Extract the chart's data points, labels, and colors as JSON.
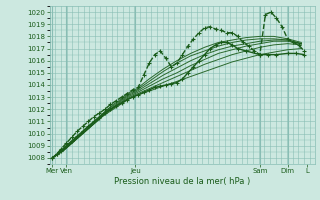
{
  "bg_color": "#cce8e0",
  "grid_color": "#88bdb4",
  "line_color": "#1a5c1a",
  "tick_color": "#1a5c1a",
  "xlabel_color": "#1a5c1a",
  "ylim": [
    1007.5,
    1020.5
  ],
  "yticks": [
    1008,
    1009,
    1010,
    1011,
    1012,
    1013,
    1014,
    1015,
    1016,
    1017,
    1018,
    1019,
    1020
  ],
  "xlabel": "Pression niveau de la mer( hPa )",
  "day_ticks": {
    "labels": [
      "Mer",
      "Ven",
      "Jeu",
      "Sam",
      "Dim",
      "L"
    ],
    "positions": [
      0.0,
      0.5,
      3.0,
      7.5,
      8.5,
      9.2
    ]
  },
  "vlines": [
    0.0,
    0.5,
    3.0,
    7.5,
    8.5
  ],
  "xlim": [
    -0.1,
    9.5
  ],
  "lines": [
    {
      "x": [
        0.0,
        0.15,
        0.3,
        0.5,
        0.7,
        0.9,
        1.1,
        1.3,
        1.5,
        1.7,
        1.9,
        2.1,
        2.3,
        2.5,
        2.7,
        2.9,
        3.1,
        3.3,
        3.5,
        3.7,
        3.9,
        4.1,
        4.3,
        4.5,
        4.7,
        4.9,
        5.1,
        5.3,
        5.5,
        5.7,
        5.9,
        6.1,
        6.3,
        6.5,
        6.7,
        6.9,
        7.1,
        7.3,
        7.5,
        7.7,
        7.9,
        8.1,
        8.3,
        8.5,
        8.7,
        8.9,
        9.1
      ],
      "y": [
        1008.0,
        1008.3,
        1008.7,
        1009.2,
        1009.7,
        1010.2,
        1010.6,
        1011.0,
        1011.4,
        1011.7,
        1012.0,
        1012.4,
        1012.7,
        1013.0,
        1013.3,
        1013.6,
        1013.8,
        1014.8,
        1015.8,
        1016.5,
        1016.8,
        1016.2,
        1015.5,
        1015.8,
        1016.5,
        1017.2,
        1017.8,
        1018.3,
        1018.7,
        1018.8,
        1018.6,
        1018.5,
        1018.3,
        1018.3,
        1018.0,
        1017.5,
        1017.2,
        1016.8,
        1016.5,
        1019.8,
        1020.0,
        1019.5,
        1018.8,
        1017.8,
        1017.5,
        1017.3,
        1016.8
      ],
      "marker": "+",
      "lw": 1.0,
      "ms": 2.5,
      "dashed": true,
      "alpha": 1.0
    },
    {
      "x": [
        0.0,
        0.15,
        0.3,
        0.5,
        0.7,
        0.9,
        1.1,
        1.3,
        1.5,
        1.7,
        1.9,
        2.1,
        2.3,
        2.5,
        2.7,
        2.9,
        3.1,
        3.3,
        3.5,
        3.7,
        3.9,
        4.1,
        4.3,
        4.5,
        4.7,
        4.9,
        5.1,
        5.3,
        5.5,
        5.7,
        5.9,
        6.1,
        6.3,
        6.5,
        6.7,
        7.0,
        7.5,
        7.8,
        8.1,
        8.5,
        8.8,
        9.1
      ],
      "y": [
        1008.0,
        1008.3,
        1008.6,
        1009.0,
        1009.4,
        1009.8,
        1010.2,
        1010.6,
        1011.0,
        1011.3,
        1011.7,
        1012.0,
        1012.3,
        1012.5,
        1012.8,
        1013.0,
        1013.2,
        1013.4,
        1013.6,
        1013.8,
        1013.9,
        1014.0,
        1014.1,
        1014.2,
        1014.5,
        1015.0,
        1015.5,
        1016.0,
        1016.5,
        1017.0,
        1017.3,
        1017.5,
        1017.5,
        1017.3,
        1017.0,
        1016.8,
        1016.5,
        1016.5,
        1016.5,
        1016.6,
        1016.6,
        1016.5
      ],
      "marker": "+",
      "lw": 1.0,
      "ms": 2.5,
      "dashed": false,
      "alpha": 1.0
    },
    {
      "x": [
        0.0,
        0.2,
        0.4,
        0.6,
        0.8,
        1.0,
        1.2,
        1.4,
        1.6,
        1.8,
        2.0,
        2.2,
        2.4,
        2.6,
        2.8,
        3.0,
        3.5,
        4.0,
        4.5,
        5.0,
        5.5,
        6.0,
        6.5,
        7.0,
        7.5,
        8.0,
        8.5,
        9.0
      ],
      "y": [
        1008.0,
        1008.3,
        1008.6,
        1009.0,
        1009.4,
        1009.8,
        1010.2,
        1010.6,
        1011.0,
        1011.4,
        1011.7,
        1012.0,
        1012.3,
        1012.6,
        1012.9,
        1013.1,
        1013.5,
        1013.9,
        1014.3,
        1014.7,
        1015.1,
        1015.5,
        1015.9,
        1016.2,
        1016.5,
        1016.7,
        1016.9,
        1017.0
      ],
      "marker": null,
      "lw": 0.7,
      "ms": 0,
      "dashed": false,
      "alpha": 0.9
    },
    {
      "x": [
        0.0,
        0.2,
        0.4,
        0.6,
        0.8,
        1.0,
        1.2,
        1.4,
        1.6,
        1.8,
        2.0,
        2.2,
        2.4,
        2.6,
        2.8,
        3.0,
        3.5,
        4.0,
        4.5,
        5.0,
        5.5,
        6.0,
        6.5,
        7.0,
        7.5,
        8.0,
        8.5,
        9.0
      ],
      "y": [
        1008.0,
        1008.3,
        1008.6,
        1009.0,
        1009.4,
        1009.8,
        1010.2,
        1010.6,
        1011.0,
        1011.4,
        1011.8,
        1012.1,
        1012.4,
        1012.7,
        1013.0,
        1013.2,
        1013.7,
        1014.2,
        1014.7,
        1015.2,
        1015.7,
        1016.1,
        1016.5,
        1016.8,
        1017.1,
        1017.3,
        1017.4,
        1017.3
      ],
      "marker": null,
      "lw": 0.7,
      "ms": 0,
      "dashed": false,
      "alpha": 0.9
    },
    {
      "x": [
        0.0,
        0.2,
        0.4,
        0.6,
        0.8,
        1.0,
        1.2,
        1.4,
        1.6,
        1.8,
        2.0,
        2.2,
        2.4,
        2.6,
        2.8,
        3.0,
        3.5,
        4.0,
        4.5,
        5.0,
        5.5,
        6.0,
        6.5,
        7.0,
        7.5,
        8.0,
        8.5,
        9.0
      ],
      "y": [
        1008.0,
        1008.3,
        1008.6,
        1009.0,
        1009.4,
        1009.8,
        1010.2,
        1010.6,
        1011.0,
        1011.4,
        1011.8,
        1012.1,
        1012.4,
        1012.8,
        1013.1,
        1013.3,
        1013.9,
        1014.5,
        1015.0,
        1015.6,
        1016.1,
        1016.6,
        1016.9,
        1017.2,
        1017.4,
        1017.6,
        1017.6,
        1017.4
      ],
      "marker": null,
      "lw": 0.7,
      "ms": 0,
      "dashed": false,
      "alpha": 0.9
    },
    {
      "x": [
        0.0,
        0.2,
        0.4,
        0.6,
        0.8,
        1.0,
        1.2,
        1.4,
        1.6,
        1.8,
        2.0,
        2.2,
        2.4,
        2.6,
        2.8,
        3.0,
        3.5,
        4.0,
        4.5,
        5.0,
        5.5,
        6.0,
        6.5,
        7.0,
        7.5,
        8.0,
        8.5,
        9.0
      ],
      "y": [
        1008.0,
        1008.3,
        1008.7,
        1009.1,
        1009.5,
        1009.9,
        1010.3,
        1010.7,
        1011.1,
        1011.5,
        1011.9,
        1012.2,
        1012.5,
        1012.9,
        1013.2,
        1013.4,
        1014.1,
        1014.8,
        1015.4,
        1016.0,
        1016.5,
        1016.9,
        1017.2,
        1017.4,
        1017.6,
        1017.7,
        1017.7,
        1017.4
      ],
      "marker": null,
      "lw": 0.7,
      "ms": 0,
      "dashed": false,
      "alpha": 0.9
    },
    {
      "x": [
        0.0,
        0.2,
        0.4,
        0.6,
        0.8,
        1.0,
        1.2,
        1.4,
        1.6,
        1.8,
        2.0,
        2.2,
        2.4,
        2.6,
        2.8,
        3.0,
        3.5,
        4.0,
        4.5,
        5.0,
        5.5,
        6.0,
        6.5,
        7.0,
        7.5,
        8.0,
        8.5,
        9.0
      ],
      "y": [
        1008.0,
        1008.3,
        1008.7,
        1009.1,
        1009.5,
        1009.9,
        1010.3,
        1010.7,
        1011.2,
        1011.6,
        1012.0,
        1012.3,
        1012.6,
        1013.0,
        1013.3,
        1013.5,
        1014.3,
        1015.1,
        1015.8,
        1016.4,
        1016.8,
        1017.2,
        1017.5,
        1017.7,
        1017.8,
        1017.8,
        1017.7,
        1017.4
      ],
      "marker": null,
      "lw": 0.7,
      "ms": 0,
      "dashed": false,
      "alpha": 0.9
    },
    {
      "x": [
        0.0,
        0.2,
        0.4,
        0.6,
        0.8,
        1.0,
        1.2,
        1.4,
        1.6,
        1.8,
        2.0,
        2.2,
        2.4,
        2.6,
        2.8,
        3.0,
        3.5,
        4.0,
        4.5,
        5.0,
        5.5,
        6.0,
        6.5,
        7.0,
        7.5,
        8.0,
        8.5,
        9.0
      ],
      "y": [
        1008.0,
        1008.3,
        1008.7,
        1009.1,
        1009.5,
        1009.9,
        1010.4,
        1010.8,
        1011.2,
        1011.6,
        1012.0,
        1012.4,
        1012.7,
        1013.1,
        1013.4,
        1013.6,
        1014.5,
        1015.3,
        1016.0,
        1016.6,
        1017.1,
        1017.5,
        1017.7,
        1017.9,
        1018.0,
        1018.0,
        1017.8,
        1017.5
      ],
      "marker": null,
      "lw": 0.7,
      "ms": 0,
      "dashed": false,
      "alpha": 0.9
    }
  ]
}
